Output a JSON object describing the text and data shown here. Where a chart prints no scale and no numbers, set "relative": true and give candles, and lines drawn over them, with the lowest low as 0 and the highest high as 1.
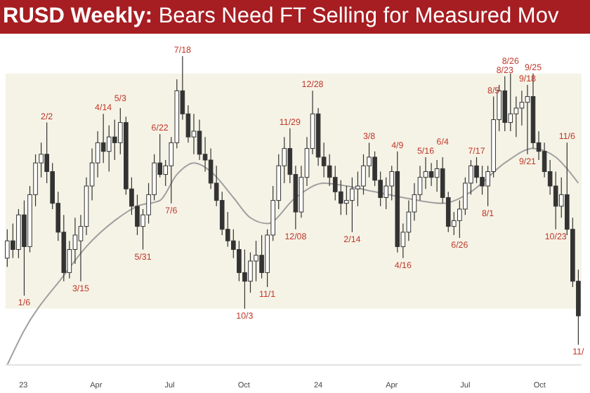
{
  "chart_data": {
    "type": "candlestick",
    "title": "RUSD Weekly: Bears Need FT Selling for Measured Mov",
    "relative": true,
    "color": "#333333",
    "x": [
      "2022-12-12",
      "2022-12-19",
      "2022-12-26",
      "2023-01-02",
      "2023-01-09",
      "2023-01-16",
      "2023-01-23",
      "2023-01-30",
      "2023-02-06",
      "2023-02-13",
      "2023-02-20",
      "2023-02-27",
      "2023-03-06",
      "2023-03-13",
      "2023-03-20",
      "2023-03-27",
      "2023-04-03",
      "2023-04-10",
      "2023-04-17",
      "2023-04-24",
      "2023-05-01",
      "2023-05-08",
      "2023-05-15",
      "2023-05-22",
      "2023-05-29",
      "2023-06-05",
      "2023-06-12",
      "2023-06-19",
      "2023-06-26",
      "2023-07-03",
      "2023-07-10",
      "2023-07-17",
      "2023-07-24",
      "2023-07-31",
      "2023-08-07",
      "2023-08-14",
      "2023-08-21",
      "2023-08-28",
      "2023-09-04",
      "2023-09-11",
      "2023-09-18",
      "2023-09-25",
      "2023-10-02",
      "2023-10-09",
      "2023-10-16",
      "2023-10-23",
      "2023-10-30",
      "2023-11-06",
      "2023-11-13",
      "2023-11-20",
      "2023-11-27",
      "2023-12-04",
      "2023-12-11",
      "2023-12-18",
      "2023-12-25",
      "2024-01-01",
      "2024-01-08",
      "2024-01-15",
      "2024-01-22",
      "2024-01-29",
      "2024-02-05",
      "2024-02-12",
      "2024-02-19",
      "2024-02-26",
      "2024-03-04",
      "2024-03-11",
      "2024-03-18",
      "2024-03-25",
      "2024-04-01",
      "2024-04-08",
      "2024-04-15",
      "2024-04-22",
      "2024-04-29",
      "2024-05-06",
      "2024-05-13",
      "2024-05-20",
      "2024-05-27",
      "2024-06-03",
      "2024-06-10",
      "2024-06-17",
      "2024-06-24",
      "2024-07-01",
      "2024-07-08",
      "2024-07-15",
      "2024-07-22",
      "2024-07-29",
      "2024-08-05",
      "2024-08-12",
      "2024-08-19",
      "2024-08-26",
      "2024-09-02",
      "2024-09-09",
      "2024-09-16",
      "2024-09-23",
      "2024-09-30",
      "2024-10-07",
      "2024-10-14",
      "2024-10-21",
      "2024-10-28",
      "2024-11-04",
      "2024-11-11",
      "2024-11-18"
    ],
    "ohlc": [
      [
        0.3,
        0.4,
        0.27,
        0.36
      ],
      [
        0.36,
        0.42,
        0.3,
        0.33
      ],
      [
        0.33,
        0.47,
        0.3,
        0.45
      ],
      [
        0.45,
        0.5,
        0.17,
        0.34
      ],
      [
        0.34,
        0.55,
        0.32,
        0.52
      ],
      [
        0.52,
        0.66,
        0.48,
        0.63
      ],
      [
        0.63,
        0.7,
        0.58,
        0.66
      ],
      [
        0.66,
        0.77,
        0.56,
        0.6
      ],
      [
        0.6,
        0.63,
        0.47,
        0.49
      ],
      [
        0.49,
        0.53,
        0.36,
        0.39
      ],
      [
        0.39,
        0.45,
        0.22,
        0.25
      ],
      [
        0.25,
        0.36,
        0.23,
        0.33
      ],
      [
        0.33,
        0.44,
        0.28,
        0.38
      ],
      [
        0.36,
        0.45,
        0.22,
        0.41
      ],
      [
        0.41,
        0.58,
        0.38,
        0.55
      ],
      [
        0.55,
        0.68,
        0.5,
        0.63
      ],
      [
        0.63,
        0.74,
        0.58,
        0.7
      ],
      [
        0.7,
        0.8,
        0.63,
        0.67
      ],
      [
        0.67,
        0.76,
        0.6,
        0.72
      ],
      [
        0.72,
        0.78,
        0.64,
        0.7
      ],
      [
        0.7,
        0.82,
        0.66,
        0.77
      ],
      [
        0.77,
        0.79,
        0.52,
        0.54
      ],
      [
        0.54,
        0.58,
        0.45,
        0.48
      ],
      [
        0.48,
        0.52,
        0.38,
        0.41
      ],
      [
        0.41,
        0.47,
        0.33,
        0.45
      ],
      [
        0.45,
        0.56,
        0.42,
        0.52
      ],
      [
        0.52,
        0.66,
        0.5,
        0.63
      ],
      [
        0.63,
        0.73,
        0.58,
        0.59
      ],
      [
        0.59,
        0.64,
        0.55,
        0.62
      ],
      [
        0.62,
        0.72,
        0.49,
        0.7
      ],
      [
        0.7,
        0.92,
        0.68,
        0.88
      ],
      [
        0.88,
        1.0,
        0.78,
        0.8
      ],
      [
        0.8,
        0.83,
        0.7,
        0.72
      ],
      [
        0.72,
        0.8,
        0.66,
        0.74
      ],
      [
        0.74,
        0.78,
        0.64,
        0.66
      ],
      [
        0.66,
        0.72,
        0.6,
        0.64
      ],
      [
        0.64,
        0.68,
        0.54,
        0.56
      ],
      [
        0.56,
        0.62,
        0.48,
        0.5
      ],
      [
        0.5,
        0.53,
        0.38,
        0.4
      ],
      [
        0.4,
        0.46,
        0.34,
        0.36
      ],
      [
        0.36,
        0.4,
        0.3,
        0.33
      ],
      [
        0.33,
        0.36,
        0.22,
        0.25
      ],
      [
        0.25,
        0.33,
        0.125,
        0.22
      ],
      [
        0.22,
        0.32,
        0.18,
        0.29
      ],
      [
        0.29,
        0.36,
        0.22,
        0.31
      ],
      [
        0.31,
        0.38,
        0.23,
        0.25
      ],
      [
        0.25,
        0.4,
        0.2,
        0.38
      ],
      [
        0.38,
        0.55,
        0.36,
        0.5
      ],
      [
        0.5,
        0.66,
        0.47,
        0.62
      ],
      [
        0.62,
        0.72,
        0.56,
        0.68
      ],
      [
        0.68,
        0.75,
        0.56,
        0.59
      ],
      [
        0.59,
        0.62,
        0.4,
        0.46
      ],
      [
        0.46,
        0.62,
        0.44,
        0.58
      ],
      [
        0.58,
        0.72,
        0.55,
        0.68
      ],
      [
        0.68,
        0.88,
        0.66,
        0.8
      ],
      [
        0.8,
        0.82,
        0.62,
        0.65
      ],
      [
        0.65,
        0.7,
        0.58,
        0.62
      ],
      [
        0.62,
        0.66,
        0.55,
        0.58
      ],
      [
        0.58,
        0.62,
        0.5,
        0.53
      ],
      [
        0.53,
        0.57,
        0.45,
        0.49
      ],
      [
        0.49,
        0.55,
        0.45,
        0.5
      ],
      [
        0.5,
        0.58,
        0.39,
        0.54
      ],
      [
        0.54,
        0.6,
        0.48,
        0.55
      ],
      [
        0.55,
        0.66,
        0.52,
        0.62
      ],
      [
        0.62,
        0.7,
        0.58,
        0.65
      ],
      [
        0.65,
        0.67,
        0.55,
        0.57
      ],
      [
        0.57,
        0.6,
        0.48,
        0.51
      ],
      [
        0.51,
        0.58,
        0.47,
        0.55
      ],
      [
        0.55,
        0.62,
        0.5,
        0.6
      ],
      [
        0.6,
        0.67,
        0.32,
        0.34
      ],
      [
        0.34,
        0.42,
        0.3,
        0.39
      ],
      [
        0.39,
        0.5,
        0.36,
        0.46
      ],
      [
        0.46,
        0.56,
        0.43,
        0.52
      ],
      [
        0.52,
        0.62,
        0.5,
        0.58
      ],
      [
        0.58,
        0.65,
        0.54,
        0.6
      ],
      [
        0.6,
        0.63,
        0.55,
        0.58
      ],
      [
        0.58,
        0.64,
        0.53,
        0.61
      ],
      [
        0.61,
        0.65,
        0.49,
        0.51
      ],
      [
        0.51,
        0.53,
        0.39,
        0.41
      ],
      [
        0.41,
        0.46,
        0.38,
        0.43
      ],
      [
        0.43,
        0.5,
        0.37,
        0.47
      ],
      [
        0.47,
        0.58,
        0.45,
        0.56
      ],
      [
        0.56,
        0.64,
        0.52,
        0.62
      ],
      [
        0.62,
        0.65,
        0.56,
        0.58
      ],
      [
        0.58,
        0.62,
        0.52,
        0.55
      ],
      [
        0.55,
        0.62,
        0.48,
        0.6
      ],
      [
        0.6,
        0.86,
        0.58,
        0.78
      ],
      [
        0.78,
        0.9,
        0.74,
        0.88
      ],
      [
        0.88,
        0.93,
        0.74,
        0.77
      ],
      [
        0.77,
        0.94,
        0.74,
        0.8
      ],
      [
        0.8,
        0.86,
        0.72,
        0.82
      ],
      [
        0.82,
        0.88,
        0.76,
        0.84
      ],
      [
        0.84,
        0.9,
        0.66,
        0.86
      ],
      [
        0.86,
        0.94,
        0.68,
        0.7
      ],
      [
        0.7,
        0.74,
        0.64,
        0.67
      ],
      [
        0.67,
        0.7,
        0.58,
        0.6
      ],
      [
        0.6,
        0.64,
        0.52,
        0.55
      ],
      [
        0.55,
        0.6,
        0.4,
        0.48
      ],
      [
        0.48,
        0.58,
        0.44,
        0.52
      ],
      [
        0.52,
        0.7,
        0.38,
        0.4
      ],
      [
        0.4,
        0.44,
        0.2,
        0.22
      ],
      [
        0.22,
        0.26,
        0.0,
        0.1
      ]
    ],
    "series": [
      {
        "type": "line",
        "color": "#a0a0a0",
        "x": [
          "2022-12-12",
          "2023-01-02",
          "2023-02-20",
          "2023-03-20",
          "2023-04-24",
          "2023-05-22",
          "2023-06-19",
          "2023-07-10",
          "2023-07-31",
          "2023-08-21",
          "2023-09-18",
          "2023-10-09",
          "2023-10-30",
          "2023-12-04",
          "2024-01-08",
          "2024-02-05",
          "2024-03-11",
          "2024-04-15",
          "2024-06-03",
          "2024-07-08",
          "2024-08-19",
          "2024-09-23",
          "2024-10-21",
          "2024-11-18"
        ],
        "values": [
          -0.07,
          0.05,
          0.24,
          0.34,
          0.43,
          0.48,
          0.5,
          0.59,
          0.63,
          0.6,
          0.51,
          0.44,
          0.42,
          0.51,
          0.56,
          0.55,
          0.53,
          0.51,
          0.49,
          0.53,
          0.63,
          0.68,
          0.65,
          0.56
        ]
      }
    ],
    "xlim": [
      "2022-12-10",
      "2024-11-22"
    ],
    "xticks": [
      {
        "value": "2023-01-01",
        "label": "23"
      },
      {
        "value": "2023-04-01",
        "label": "Apr"
      },
      {
        "value": "2023-07-01",
        "label": "Jul"
      },
      {
        "value": "2023-10-01",
        "label": "Oct"
      },
      {
        "value": "2024-01-01",
        "label": "24"
      },
      {
        "value": "2024-04-01",
        "label": "Apr"
      },
      {
        "value": "2024-07-01",
        "label": "Jul"
      },
      {
        "value": "2024-10-01",
        "label": "Oct"
      }
    ],
    "bands": [
      {
        "axis": "y",
        "from": 0.125,
        "to": 0.94,
        "color": "#f5f3e6"
      }
    ],
    "annotations": [
      {
        "text": "1/6",
        "x": "2023-01-02",
        "y": 0.17
      },
      {
        "text": "2/2",
        "x": "2023-01-30",
        "y": 0.77
      },
      {
        "text": "3/15",
        "x": "2023-03-13",
        "y": 0.22
      },
      {
        "text": "4/14",
        "x": "2023-04-10",
        "y": 0.8
      },
      {
        "text": "5/3",
        "x": "2023-05-01",
        "y": 0.82
      },
      {
        "text": "5/31",
        "x": "2023-05-29",
        "y": 0.33
      },
      {
        "text": "6/22",
        "x": "2023-06-19",
        "y": 0.73
      },
      {
        "text": "7/6",
        "x": "2023-07-03",
        "y": 0.49
      },
      {
        "text": "7/18",
        "x": "2023-07-17",
        "y": 1.0
      },
      {
        "text": "10/3",
        "x": "2023-10-02",
        "y": 0.125
      },
      {
        "text": "11/1",
        "x": "2023-10-30",
        "y": 0.2
      },
      {
        "text": "11/29",
        "x": "2023-11-27",
        "y": 0.75
      },
      {
        "text": "12/08",
        "x": "2023-12-04",
        "y": 0.4
      },
      {
        "text": "12/28",
        "x": "2023-12-25",
        "y": 0.88
      },
      {
        "text": "2/14",
        "x": "2024-02-12",
        "y": 0.39
      },
      {
        "text": "3/8",
        "x": "2024-03-04",
        "y": 0.7
      },
      {
        "text": "4/9",
        "x": "2024-04-08",
        "y": 0.67
      },
      {
        "text": "4/16",
        "x": "2024-04-15",
        "y": 0.3
      },
      {
        "text": "5/16",
        "x": "2024-05-13",
        "y": 0.65
      },
      {
        "text": "6/4",
        "x": "2024-06-03",
        "y": 0.65
      },
      {
        "text": "6/26",
        "x": "2024-06-24",
        "y": 0.37
      },
      {
        "text": "7/17",
        "x": "2024-07-15",
        "y": 0.65
      },
      {
        "text": "8/1",
        "x": "2024-07-29",
        "y": 0.48
      },
      {
        "text": "8/5",
        "x": "2024-08-05",
        "y": 0.86
      },
      {
        "text": "8/23",
        "x": "2024-08-19",
        "y": 0.93
      },
      {
        "text": "8/26",
        "x": "2024-08-26",
        "y": 0.94
      },
      {
        "text": "9/18",
        "x": "2024-09-16",
        "y": 0.9
      },
      {
        "text": "9/21",
        "x": "2024-09-16",
        "y": 0.66
      },
      {
        "text": "9/25",
        "x": "2024-09-23",
        "y": 0.94
      },
      {
        "text": "10/23",
        "x": "2024-10-21",
        "y": 0.4
      },
      {
        "text": "11/6",
        "x": "2024-11-04",
        "y": 0.7
      },
      {
        "text": "11/",
        "x": "2024-11-18",
        "y": 0.0
      }
    ]
  }
}
